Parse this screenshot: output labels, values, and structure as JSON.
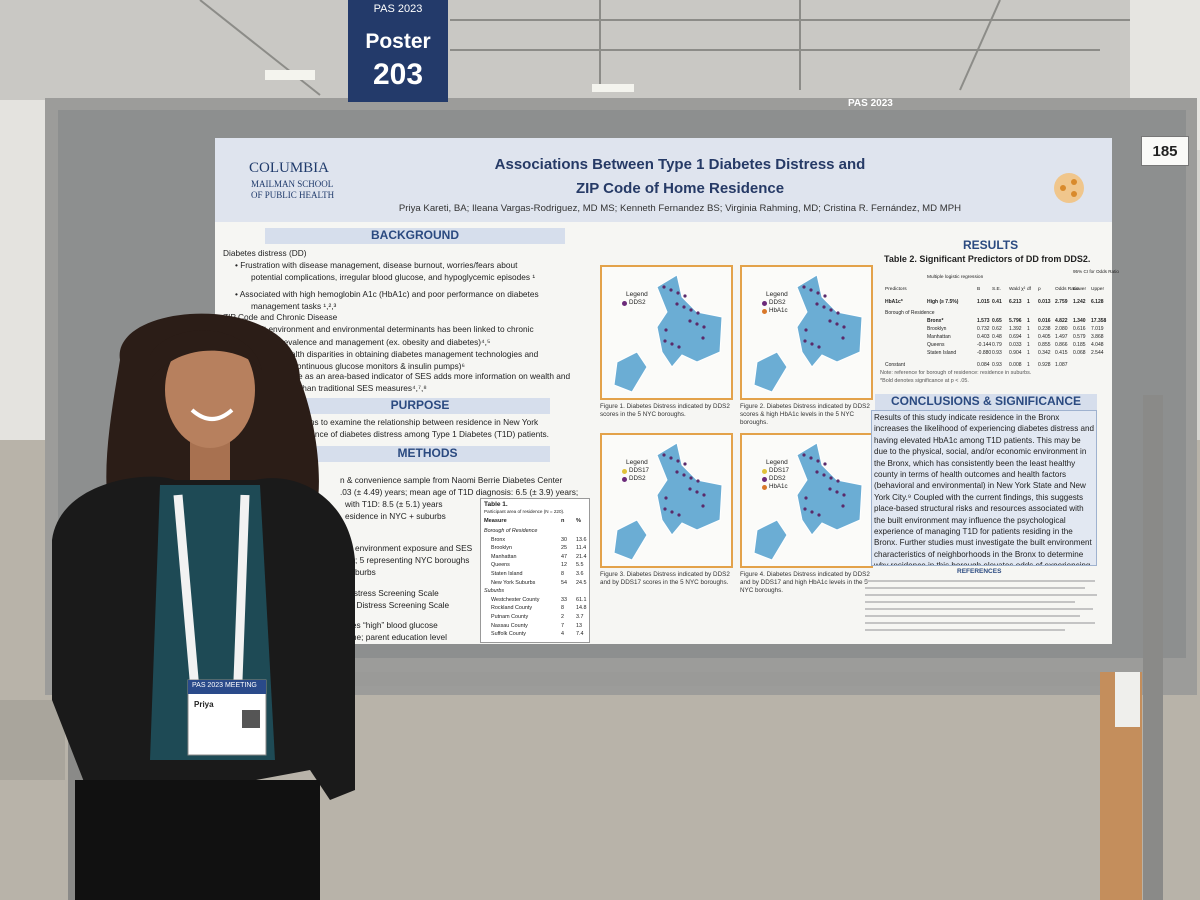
{
  "sign": {
    "event": "PAS 2023",
    "label": "Poster",
    "number": "203"
  },
  "banner": "PAS 2023",
  "board_number": "185",
  "poster": {
    "institution": [
      "COLUMBIA",
      "MAILMAN SCHOOL",
      "OF PUBLIC HEALTH"
    ],
    "title": [
      "Associations Between Type 1 Diabetes Distress and",
      "ZIP Code of Home Residence"
    ],
    "authors": "Priya Kareti, BA; Ileana Vargas-Rodriguez, MD MS; Kenneth Fernandez BS; Virginia Rahming, MD; Cristina R. Fernández, MD MPH",
    "background": {
      "heading": "BACKGROUND",
      "lines": [
        "Diabetes distress (DD)",
        "•   Frustration with disease management, disease burnout, worries/fears about",
        "potential complications, irregular blood glucose, and hypoglycemic episodes ¹",
        "•   Associated with high hemoglobin A1c (HbA1c) and poor performance on diabetes",
        "management tasks ¹,²,³",
        "ZIP Code and Chronic Disease",
        "Built environment and environmental determinants has been linked to chronic",
        "isease prevalence and management (ex. obesity and diabetes)⁴,⁵",
        "ial & wealth disparities in obtaining diabetes management technologies and",
        "(continuous glucose monitors & insulin pumps)⁶",
        "e as an area-based indicator of SES adds more information on wealth and",
        "than traditional SES measures⁴,⁷,⁸"
      ]
    },
    "purpose": {
      "heading": "PURPOSE",
      "lines": [
        "dy aims to examine the relationship between residence in New York",
        "ncidence of diabetes distress among Type 1 Diabetes (T1D) patients."
      ]
    },
    "methods": {
      "heading": "METHODS",
      "lines": [
        "n & convenience sample from Naomi Berrie Diabetes Center",
        ".03 (± 4.49) years; mean age of T1D diagnosis: 6.5 (± 3.9) years;",
        "with T1D: 8.5 (± 5.1) years",
        "esidence in NYC + suburbs",
        "environment exposure and SES",
        "; 5 representing NYC boroughs",
        "burbs",
        "istress Screening Scale",
        "s Distress Screening Scale",
        "ates “high” blood glucose",
        "ome; parent education level"
      ]
    },
    "table1": {
      "title": "Table 1.",
      "subtitle": "Participant area of residence (N = 220).",
      "header": [
        "Measure",
        "n",
        "%"
      ],
      "rows": [
        [
          "Borough of Residence"
        ],
        [
          "Bronx",
          "30",
          "13.6"
        ],
        [
          "Brooklyn",
          "25",
          "11.4"
        ],
        [
          "Manhattan",
          "47",
          "21.4"
        ],
        [
          "Queens",
          "12",
          "5.5"
        ],
        [
          "Staten Island",
          "8",
          "3.6"
        ],
        [
          "New York Suburbs",
          "54",
          "24.5"
        ],
        [
          "Suburbs"
        ],
        [
          "Westchester County",
          "33",
          "61.1"
        ],
        [
          "Rockland County",
          "8",
          "14.8"
        ],
        [
          "Putnam County",
          "2",
          "3.7"
        ],
        [
          "Nassau County",
          "7",
          "13"
        ],
        [
          "Suffolk County",
          "4",
          "7.4"
        ]
      ]
    },
    "figures": [
      {
        "legend_title": "Legend",
        "legend": [
          "DDS2"
        ],
        "caption": "Figure 1. Diabetes Distress indicated by DDS2 scores in the 5 NYC boroughs."
      },
      {
        "legend_title": "Legend",
        "legend": [
          "DDS2",
          "HbA1c"
        ],
        "caption": "Figure 2. Diabetes Distress indicated by DDS2 scores & high HbA1c levels in the 5 NYC boroughs."
      },
      {
        "legend_title": "Legend",
        "legend": [
          "DDS17",
          "DDS2"
        ],
        "caption": "Figure 3. Diabetes Distress indicated by DDS2 and by DDS17 scores in the 5 NYC boroughs."
      },
      {
        "legend_title": "Legend",
        "legend": [
          "DDS17",
          "DDS2",
          "HbA1c"
        ],
        "caption": "Figure 4. Diabetes Distress indicated by DDS2 and by DDS17 and high HbA1c levels in the 5 NYC boroughs."
      }
    ],
    "results": {
      "heading": "RESULTS",
      "table_title": "Table 2. Significant Predictors of DD from DDS2.",
      "ci_header": "95% CI for Odds Ratio",
      "header": [
        "Predictors",
        "Multiple logistic regression",
        "B",
        "S.E.",
        "Wald χ²",
        "df",
        "p",
        "Odds Ratio",
        "Lower",
        "Upper"
      ],
      "rows": [
        [
          "HbA1c*",
          "High (≥ 7.5%)",
          "1.015",
          "0.41",
          "6.213",
          "1",
          "0.013",
          "2.759",
          "1.242",
          "6.128"
        ],
        [
          "Borough of Residence"
        ],
        [
          "Bronx*",
          "1.573",
          "0.65",
          "5.796",
          "1",
          "0.016",
          "4.822",
          "1.340",
          "17.358"
        ],
        [
          "Brooklyn",
          "0.732",
          "0.62",
          "1.392",
          "1",
          "0.238",
          "2.080",
          "0.616",
          "7.019"
        ],
        [
          "Manhattan",
          "0.403",
          "0.48",
          "0.694",
          "1",
          "0.405",
          "1.497",
          "0.579",
          "3.868"
        ],
        [
          "Queens",
          "-0.144",
          "0.79",
          "0.033",
          "1",
          "0.855",
          "0.866",
          "0.185",
          "4.048"
        ],
        [
          "Staten Island",
          "-0.880",
          "0.93",
          "0.904",
          "1",
          "0.342",
          "0.415",
          "0.068",
          "2.544"
        ],
        [
          "Constant",
          "0.084",
          "0.93",
          "0.008",
          "1",
          "0.928",
          "1.087"
        ]
      ],
      "notes": [
        "Note: reference for borough of residence: residence in suburbs.",
        "*Bold denotes significance at p < .05."
      ]
    },
    "conclusions": {
      "heading": "CONCLUSIONS & SIGNIFICANCE",
      "text": "Results of this study indicate residence in the Bronx increases the likelihood of experiencing diabetes distress and having elevated HbA1c among T1D patients. This may be due to the physical, social, and/or economic environment in the Bronx, which has consistently been the least healthy county in terms of health outcomes and health factors (behavioral and environmental) in New York State and New York City.⁹ Coupled with the current findings, this suggests place-based structural risks and resources associated with the built environment may influence the psychological experience of managing T1D for patients residing in the Bronx. Further studies must investigate the built environment characteristics of neighborhoods in the Bronx to determine why residence in this borough elevates odds of experiencing diabetes distress."
    },
    "references_heading": "REFERENCES"
  },
  "badge": {
    "event": "PAS 2023 MEETING",
    "name": "Priya"
  }
}
